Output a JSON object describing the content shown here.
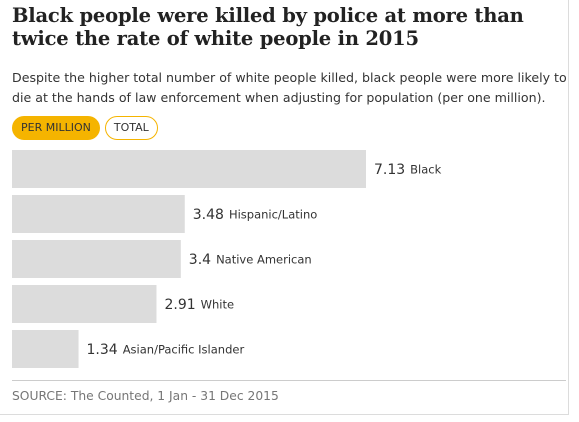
{
  "title": "Black people were killed by police at more than twice the rate of white people in 2015",
  "subtitle": "Despite the higher total number of white people killed, black people were more likely to die at the hands of law enforcement when adjusting for population (per one million).",
  "toggles": [
    {
      "label": "PER MILLION",
      "active": true
    },
    {
      "label": "TOTAL",
      "active": false
    }
  ],
  "source": "SOURCE: The Counted, 1 Jan - 31 Dec 2015",
  "colors": {
    "bar": "#dcdcdc",
    "accent": "#f5b400",
    "value_text": "#333333",
    "label_text": "#333333"
  },
  "chart_data": {
    "type": "bar",
    "orientation": "horizontal",
    "categories": [
      "Black",
      "Hispanic/Latino",
      "Native American",
      "White",
      "Asian/Pacific Islander"
    ],
    "values": [
      7.13,
      3.48,
      3.4,
      2.91,
      1.34
    ],
    "value_labels": [
      "7.13",
      "3.48",
      "3.4",
      "2.91",
      "1.34"
    ],
    "xlim": [
      0,
      7.13
    ],
    "grid": false,
    "legend": "none"
  }
}
